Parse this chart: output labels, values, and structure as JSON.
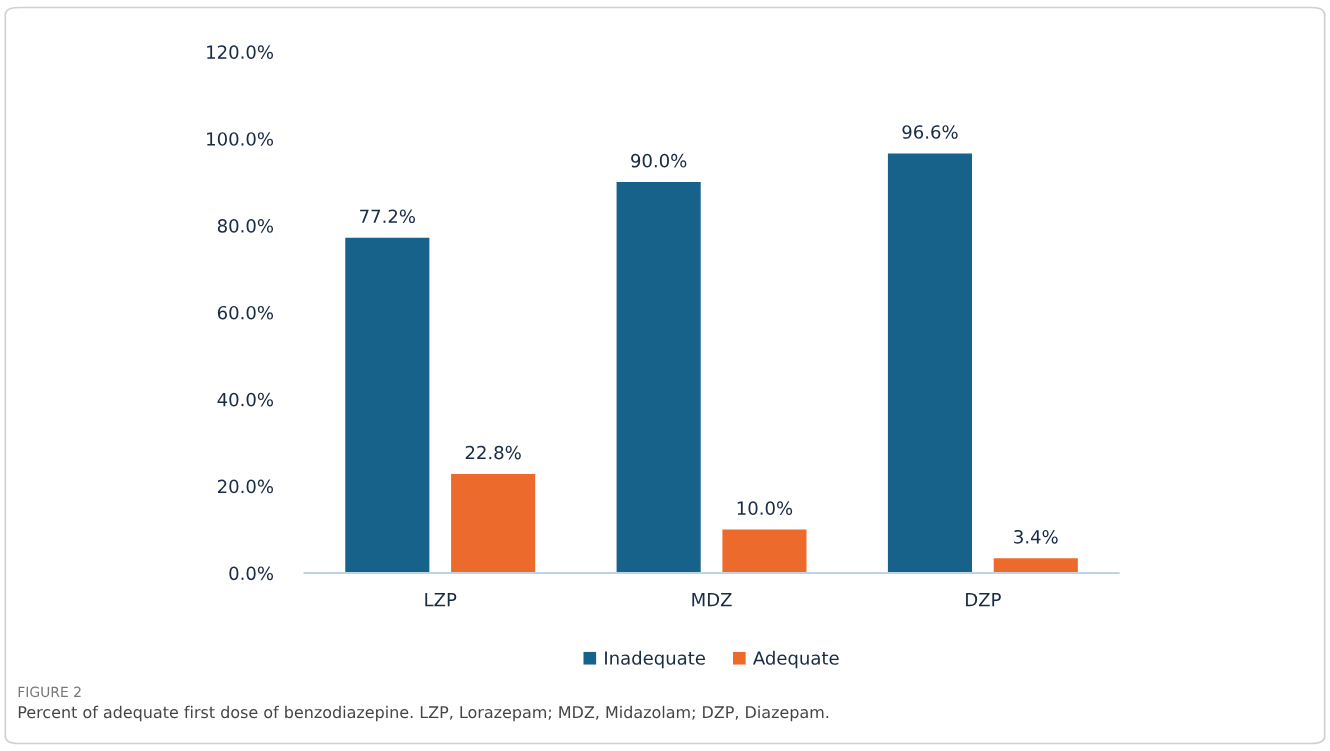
{
  "chart_data": {
    "type": "bar",
    "categories": [
      "LZP",
      "MDZ",
      "DZP"
    ],
    "series": [
      {
        "name": "Inadequate",
        "color": "#17628a",
        "values": [
          77.2,
          90.0,
          96.6
        ],
        "value_labels": [
          "77.2%",
          "90.0%",
          "96.6%"
        ]
      },
      {
        "name": "Adequate",
        "color": "#ec6a2c",
        "values": [
          22.8,
          10.0,
          3.4
        ],
        "value_labels": [
          "22.8%",
          "10.0%",
          "3.4%"
        ]
      }
    ],
    "ylim": [
      0,
      120
    ],
    "yticks": [
      {
        "value": 0,
        "label": "0.0%"
      },
      {
        "value": 20,
        "label": "20.0%"
      },
      {
        "value": 40,
        "label": "40.0%"
      },
      {
        "value": 60,
        "label": "60.0%"
      },
      {
        "value": 80,
        "label": "80.0%"
      },
      {
        "value": 100,
        "label": "100.0%"
      },
      {
        "value": 120,
        "label": "120.0%"
      }
    ],
    "grid": false,
    "legend": "bottom",
    "annotations": [
      "FIGURE 2",
      "Percent of adequate first dose of benzodiazepine. LZP, Lorazepam; MDZ, Midazolam; DZP, Diazepam."
    ]
  }
}
